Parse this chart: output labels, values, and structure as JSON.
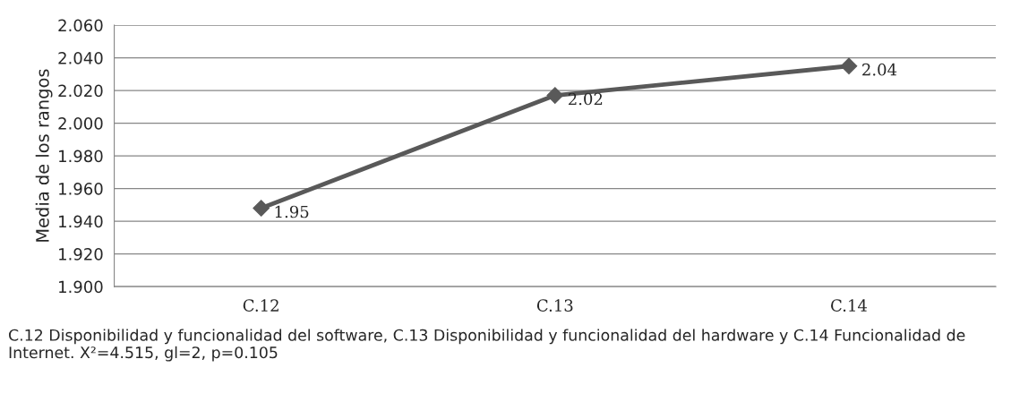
{
  "chart_data": {
    "type": "line",
    "ylabel": "Media de los rangos",
    "categories": [
      "C.12",
      "C.13",
      "C.14"
    ],
    "series": [
      {
        "color": "#595959",
        "values": [
          1.948,
          2.017,
          2.035
        ],
        "value_labels": [
          "1.95",
          "2.02",
          "2.04"
        ]
      }
    ],
    "ylim": [
      1.9,
      2.06
    ],
    "yticks": [
      {
        "value": 1.9,
        "label": "1.900"
      },
      {
        "value": 1.92,
        "label": "1.920"
      },
      {
        "value": 1.94,
        "label": "1.940"
      },
      {
        "value": 1.96,
        "label": "1.960"
      },
      {
        "value": 1.98,
        "label": "1.980"
      },
      {
        "value": 2.0,
        "label": "2.000"
      },
      {
        "value": 2.02,
        "label": "2.020"
      },
      {
        "value": 2.04,
        "label": "2.040"
      },
      {
        "value": 2.06,
        "label": "2.060"
      }
    ],
    "grid": "y",
    "marker": "diamond",
    "line_style": "solid",
    "legend": false,
    "annotations": [
      "C.12 Disponibilidad y funcionalidad del software, C.13 Disponibilidad y funcionalidad del hardware y C.14 Funcionalidad de Internet. X²=4.515, gl=2, p=0.105"
    ]
  }
}
